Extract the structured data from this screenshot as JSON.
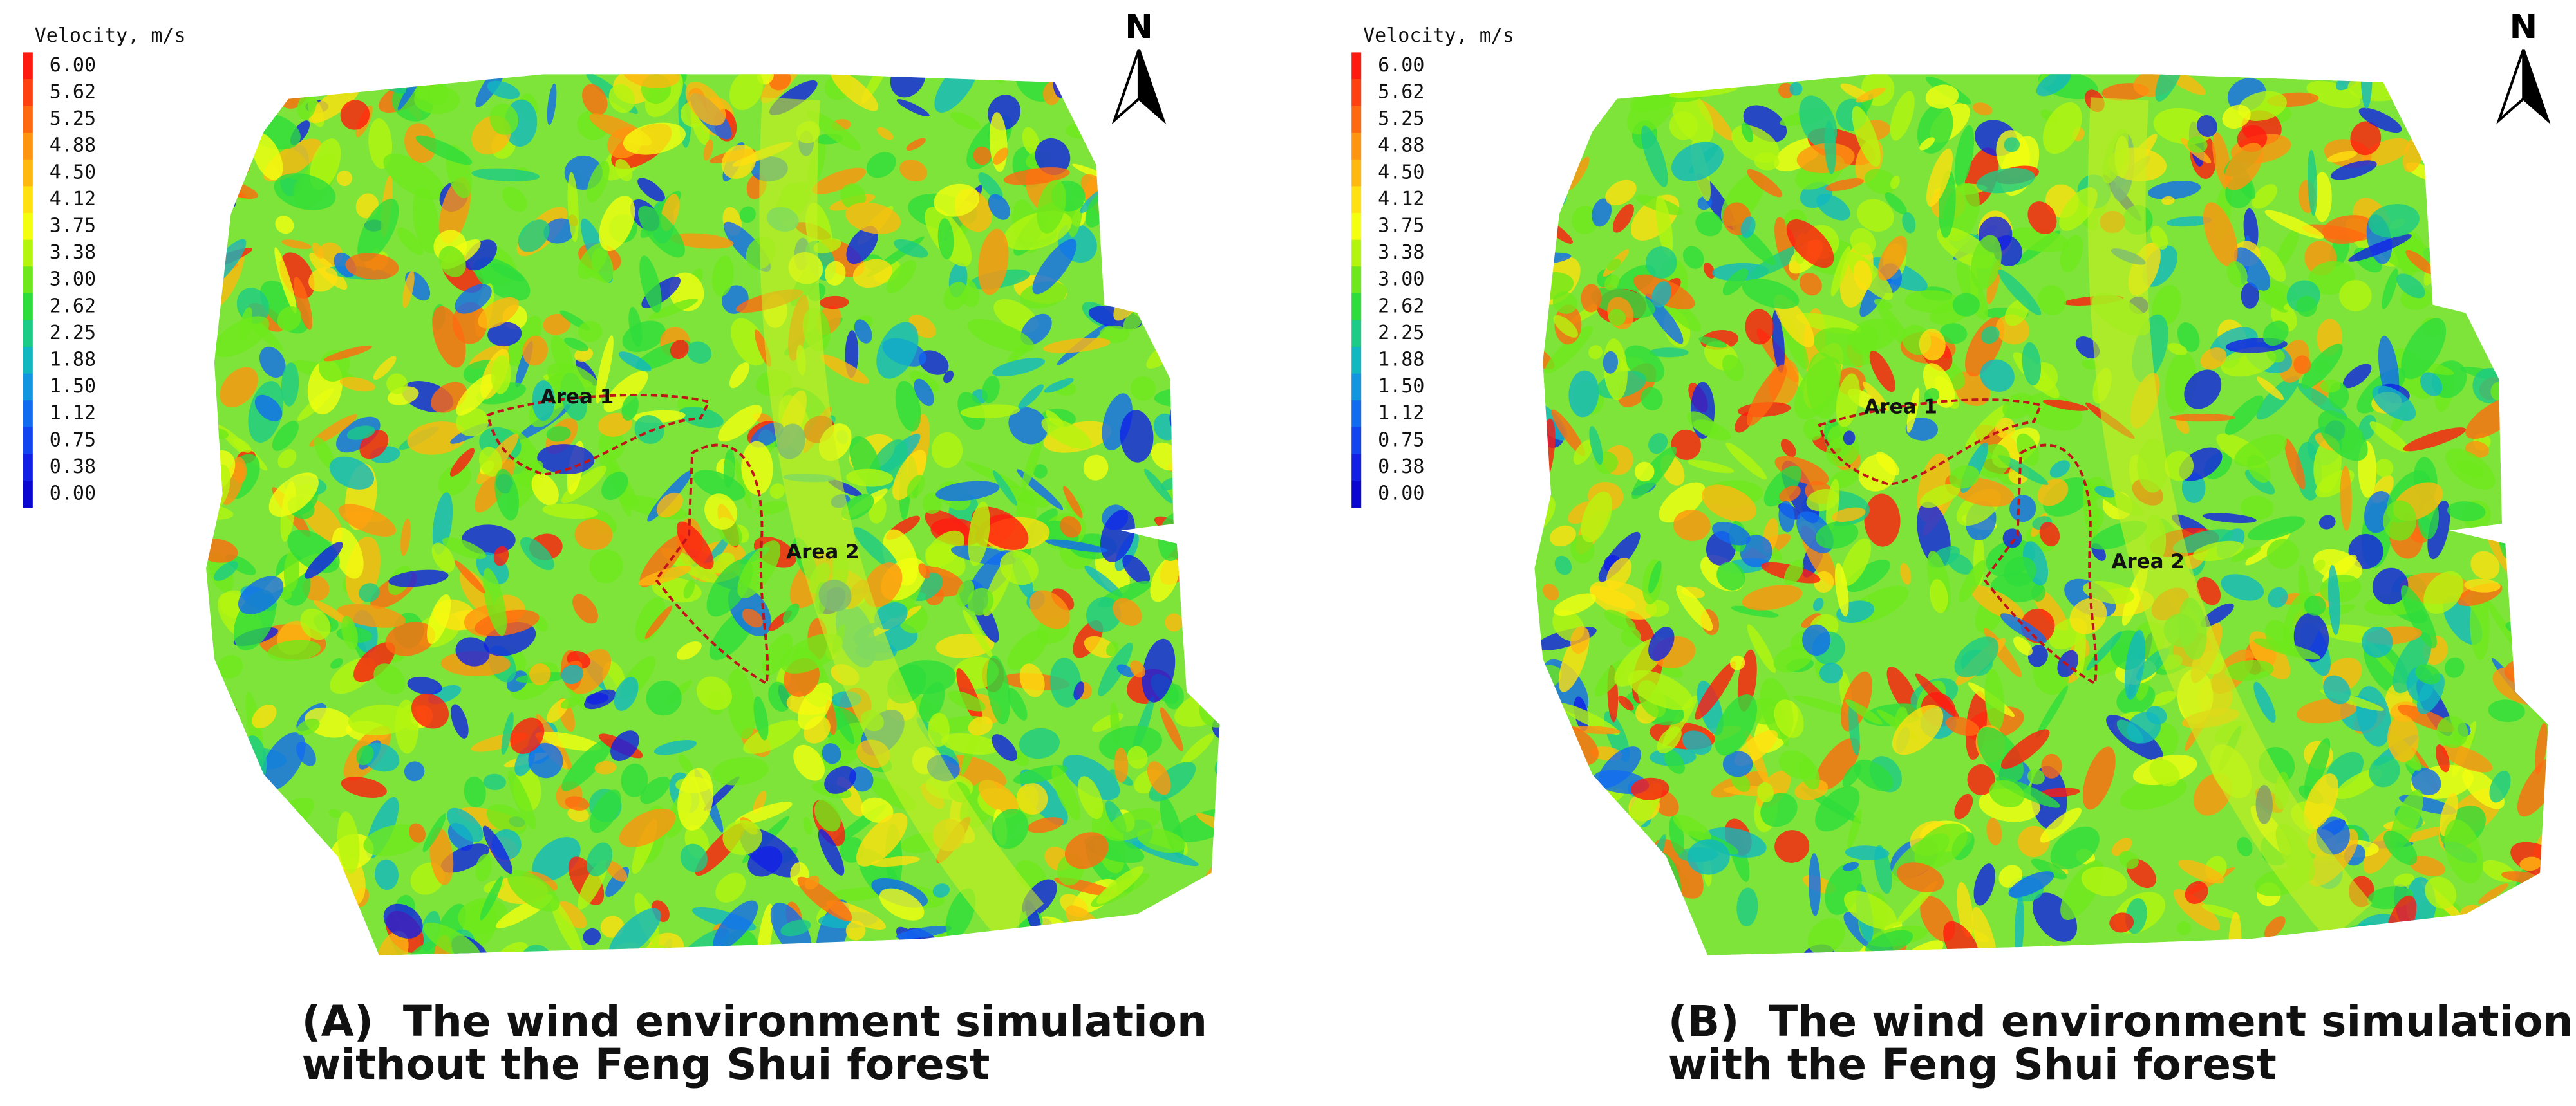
{
  "panels": [
    {
      "legend": {
        "title": "Velocity, m/s",
        "levels": [
          {
            "label": "6.00",
            "color": "#ff1a10"
          },
          {
            "label": "5.62",
            "color": "#ff4010"
          },
          {
            "label": "5.25",
            "color": "#ff6a10"
          },
          {
            "label": "4.88",
            "color": "#ff9410"
          },
          {
            "label": "4.50",
            "color": "#ffb810"
          },
          {
            "label": "4.12",
            "color": "#ffe010"
          },
          {
            "label": "3.75",
            "color": "#f4ff10"
          },
          {
            "label": "3.38",
            "color": "#b4f510"
          },
          {
            "label": "3.00",
            "color": "#6ee81c"
          },
          {
            "label": "2.62",
            "color": "#2edc3c"
          },
          {
            "label": "2.25",
            "color": "#1ccb86"
          },
          {
            "label": "1.88",
            "color": "#12b8c0"
          },
          {
            "label": "1.50",
            "color": "#1296e0"
          },
          {
            "label": "1.12",
            "color": "#126cf0"
          },
          {
            "label": "0.75",
            "color": "#1244f0"
          },
          {
            "label": "0.38",
            "color": "#1220e6"
          },
          {
            "label": "0.00",
            "color": "#0a08d0"
          }
        ]
      },
      "north": "N",
      "areas": [
        "Area 1",
        "Area 2"
      ],
      "caption": [
        "(A)  The wind environment simulation",
        "without the Feng Shui forest"
      ]
    },
    {
      "legend": {
        "title": "Velocity, m/s",
        "levels": [
          {
            "label": "6.00",
            "color": "#ff1a10"
          },
          {
            "label": "5.62",
            "color": "#ff4010"
          },
          {
            "label": "5.25",
            "color": "#ff6a10"
          },
          {
            "label": "4.88",
            "color": "#ff9410"
          },
          {
            "label": "4.50",
            "color": "#ffb810"
          },
          {
            "label": "4.12",
            "color": "#ffe010"
          },
          {
            "label": "3.75",
            "color": "#f4ff10"
          },
          {
            "label": "3.38",
            "color": "#b4f510"
          },
          {
            "label": "3.00",
            "color": "#6ee81c"
          },
          {
            "label": "2.62",
            "color": "#2edc3c"
          },
          {
            "label": "2.25",
            "color": "#1ccb86"
          },
          {
            "label": "1.88",
            "color": "#12b8c0"
          },
          {
            "label": "1.50",
            "color": "#1296e0"
          },
          {
            "label": "1.12",
            "color": "#126cf0"
          },
          {
            "label": "0.75",
            "color": "#1244f0"
          },
          {
            "label": "0.38",
            "color": "#1220e6"
          },
          {
            "label": "0.00",
            "color": "#0a08d0"
          }
        ]
      },
      "north": "N",
      "areas": [
        "Area 1",
        "Area 2"
      ],
      "caption": [
        "(B)  The wind environment simulation",
        "with the Feng Shui forest"
      ]
    }
  ]
}
